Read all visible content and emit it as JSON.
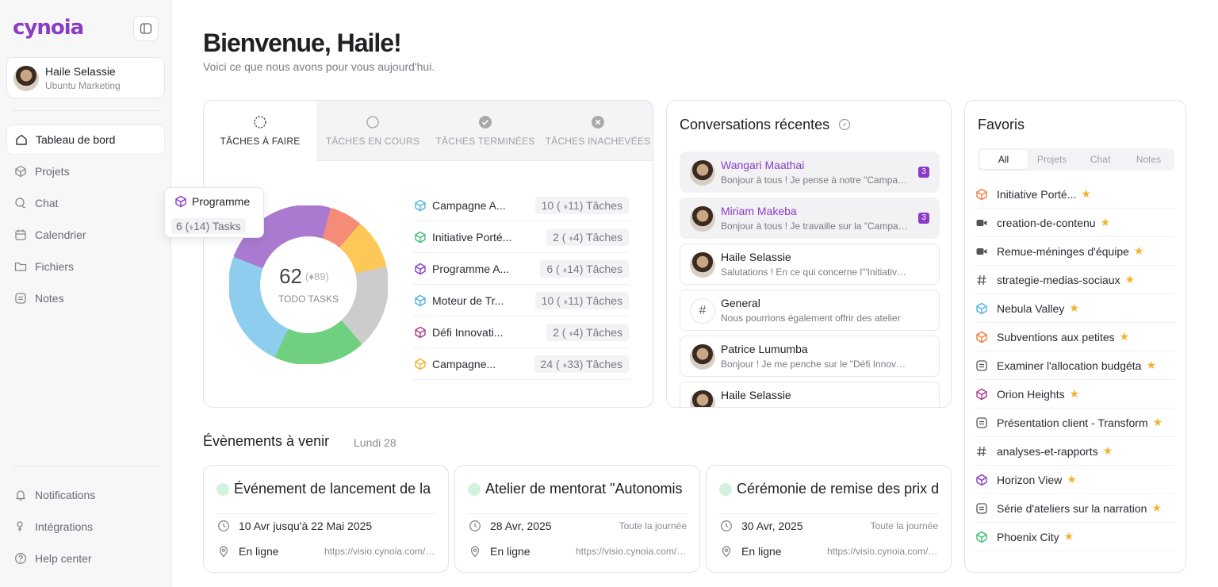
{
  "app": {
    "logo": "cynoia"
  },
  "user": {
    "name": "Haile Selassie",
    "org": "Ubuntu Marketing"
  },
  "nav": {
    "main": [
      {
        "label": "Tableau de bord",
        "icon": "home-icon"
      },
      {
        "label": "Projets",
        "icon": "cube-icon"
      },
      {
        "label": "Chat",
        "icon": "chat-icon"
      },
      {
        "label": "Calendrier",
        "icon": "calendar-icon"
      },
      {
        "label": "Fichiers",
        "icon": "folder-icon"
      },
      {
        "label": "Notes",
        "icon": "note-icon"
      }
    ],
    "bottom": [
      {
        "label": "Notifications",
        "icon": "bell-icon"
      },
      {
        "label": "Intégrations",
        "icon": "plug-icon"
      },
      {
        "label": "Help center",
        "icon": "help-icon"
      }
    ]
  },
  "tooltip": {
    "title": "Programme",
    "count": "6",
    "total": "14",
    "unit": "Tasks"
  },
  "header": {
    "title": "Bienvenue, Haile!",
    "subtitle": "Voici ce que nous avons pour vous aujourd'hui."
  },
  "tasks": {
    "tabs": [
      "TÂCHES À FAIRE",
      "TÂCHES EN COURS",
      "TÂCHES TERMINÉES",
      "TÂCHES INACHEVÉES"
    ],
    "active_tab": 0,
    "total": "62",
    "total_all": "89",
    "center_label": "TODO TASKS",
    "unit": "Tâches",
    "rows": [
      {
        "name": "Campagne A...",
        "count": "10",
        "total": "11",
        "color": "#4fb3e3"
      },
      {
        "name": "Initiative Porté...",
        "count": "2",
        "total": "4",
        "color": "#3cbf73"
      },
      {
        "name": "Programme A...",
        "count": "6",
        "total": "14",
        "color": "#8a3cc7"
      },
      {
        "name": "Moteur de Tr...",
        "count": "10",
        "total": "11",
        "color": "#4fb3e3"
      },
      {
        "name": "Défi Innovati...",
        "count": "2",
        "total": "4",
        "color": "#a83a8a"
      },
      {
        "name": "Campagne...",
        "count": "24",
        "total": "33",
        "color": "#f2b32a"
      }
    ],
    "donut": [
      {
        "value": 4,
        "color": "#f58c78"
      },
      {
        "value": 6,
        "color": "#fdc857"
      },
      {
        "value": 10,
        "color": "#cccccc"
      },
      {
        "value": 11,
        "color": "#6fd07f"
      },
      {
        "value": 14,
        "color": "#8fcdee"
      },
      {
        "value": 14,
        "color": "#a97acf"
      }
    ]
  },
  "conversations": {
    "title": "Conversations récentes",
    "items": [
      {
        "name": "Wangari Maathai",
        "msg": "Bonjour à tous ! Je pense à notre \"Campagne A...",
        "badge": "3",
        "unread": true,
        "type": "avatar"
      },
      {
        "name": "Miriam Makeba",
        "msg": "Bonjour à tous ! Je travaille sur la \"Campagne...",
        "badge": "3",
        "unread": true,
        "type": "avatar"
      },
      {
        "name": "Haile Selassie",
        "msg": "Salutations ! En ce qui concerne l'\"Initiative Portée",
        "badge": "",
        "unread": false,
        "type": "avatar"
      },
      {
        "name": "General",
        "msg": "Nous pourrions également offrir des atelier",
        "badge": "",
        "unread": false,
        "type": "hash"
      },
      {
        "name": "Patrice Lumumba",
        "msg": "Bonjour ! Je me penche sur le \"Défi Innovation...",
        "badge": "",
        "unread": false,
        "type": "avatar"
      },
      {
        "name": "Haile Selassie",
        "msg": "",
        "badge": "",
        "unread": false,
        "type": "avatar"
      }
    ]
  },
  "favorites": {
    "title": "Favoris",
    "filters": [
      "All",
      "Projets",
      "Chat",
      "Notes"
    ],
    "items": [
      {
        "label": "Initiative Porté...",
        "icon": "cube-icon",
        "color": "#f07a3a"
      },
      {
        "label": "creation-de-contenu",
        "icon": "video-icon",
        "color": "#555555"
      },
      {
        "label": "Remue-méninges d'équipe",
        "icon": "video-icon",
        "color": "#555555"
      },
      {
        "label": "strategie-medias-sociaux",
        "icon": "hash-icon",
        "color": "#555555"
      },
      {
        "label": "Nebula Valley",
        "icon": "cube-icon",
        "color": "#4fb3e3"
      },
      {
        "label": "Subventions aux petites",
        "icon": "cube-icon",
        "color": "#f07a3a"
      },
      {
        "label": "Examiner l'allocation budgéta",
        "icon": "note-icon",
        "color": "#555555"
      },
      {
        "label": "Orion Heights",
        "icon": "cube-icon",
        "color": "#a83a8a"
      },
      {
        "label": "Présentation client - Transform",
        "icon": "note-icon",
        "color": "#555555"
      },
      {
        "label": "analyses-et-rapports",
        "icon": "hash-icon",
        "color": "#555555"
      },
      {
        "label": "Horizon View",
        "icon": "cube-icon",
        "color": "#8a3cc7"
      },
      {
        "label": "Série d'ateliers sur la narration",
        "icon": "note-icon",
        "color": "#555555"
      },
      {
        "label": "Phoenix City",
        "icon": "cube-icon",
        "color": "#3cbf73"
      }
    ]
  },
  "events": {
    "title": "Évènements à venir",
    "date": "Lundi 28",
    "items": [
      {
        "title": "Événement de lancement de la",
        "date": "10 Avr jusqu'à 22 Mai 2025",
        "allday": "",
        "location": "En ligne",
        "link": "https://visio.cynoia.com/event"
      },
      {
        "title": "Atelier de mentorat \"Autonomis",
        "date": "28 Avr, 2025",
        "allday": "Toute la journée",
        "location": "En ligne",
        "link": "https://visio.cynoia.com/event"
      },
      {
        "title": "Cérémonie de remise des prix d",
        "date": "30 Avr, 2025",
        "allday": "Toute la journée",
        "location": "En ligne",
        "link": "https://visio.cynoia.com/event"
      }
    ]
  }
}
